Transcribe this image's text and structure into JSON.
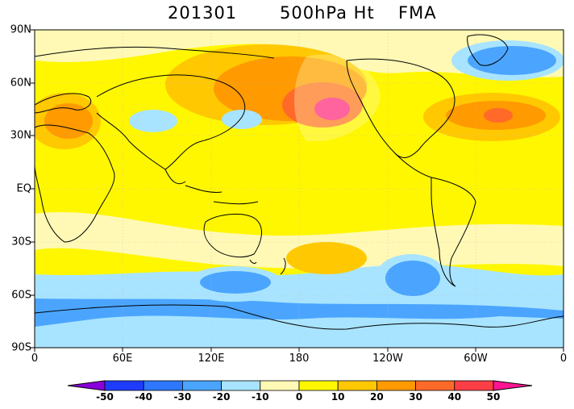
{
  "title": {
    "period": "201301",
    "variable": "500hPa Ht",
    "season": "FMA"
  },
  "map": {
    "lat_labels": [
      "90N",
      "60N",
      "30N",
      "EQ",
      "30S",
      "60S",
      "90S"
    ],
    "lon_labels": [
      "0",
      "60E",
      "120E",
      "180",
      "120W",
      "60W",
      "0"
    ],
    "projection": "cylindrical equidistant, 0–360 longitude"
  },
  "colorbar": {
    "labels": [
      "-50",
      "-40",
      "-30",
      "-20",
      "-10",
      "0",
      "10",
      "20",
      "30",
      "40",
      "50"
    ],
    "colors": [
      "#8a00dc",
      "#1e3cff",
      "#2d78ff",
      "#4ba5ff",
      "#a8e4ff",
      "#fff9b5",
      "#fff700",
      "#ffc800",
      "#ff9a00",
      "#ff6a28",
      "#ff3e46",
      "#ff1493"
    ]
  },
  "legend_colors": {
    "land_outline": "#000000",
    "grid": "#bbbbbb"
  }
}
